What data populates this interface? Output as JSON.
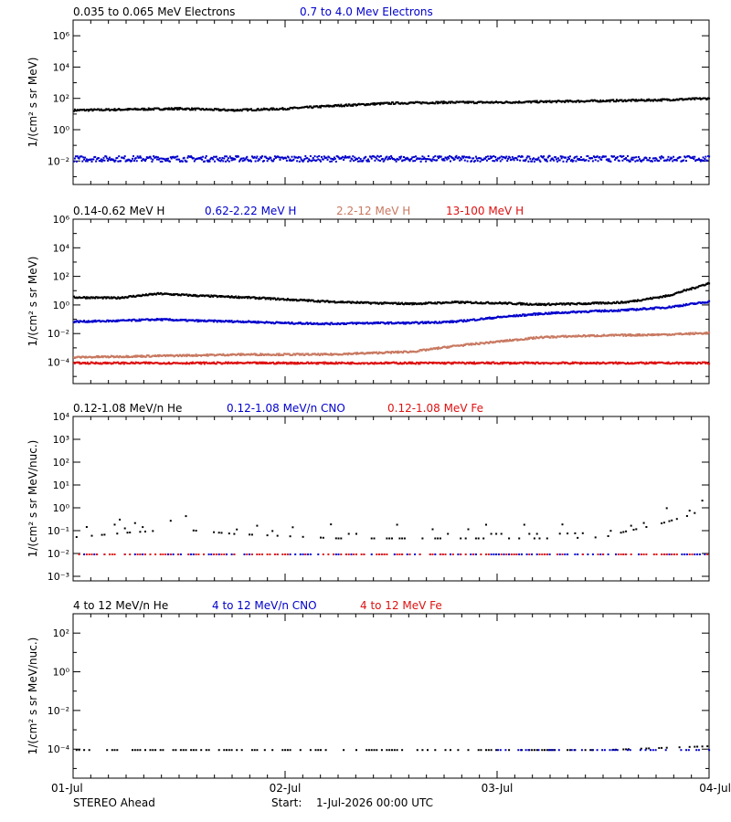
{
  "chart_data": [
    {
      "type": "scatter",
      "ylabel": "1/(cm² s sr MeV)",
      "y_log": true,
      "ylim_exp": [
        -3.5,
        7
      ],
      "ytick_exps": [
        -2,
        0,
        2,
        4,
        6
      ],
      "xlim": [
        0,
        3
      ],
      "series": [
        {
          "name": "0.035 to 0.065 MeV Electrons",
          "color": "#000000",
          "x": [
            0,
            0.25,
            0.5,
            0.75,
            1.0,
            1.25,
            1.5,
            1.75,
            2.0,
            2.25,
            2.5,
            2.75,
            3.0
          ],
          "y_exp": [
            1.3,
            1.35,
            1.4,
            1.3,
            1.4,
            1.6,
            1.75,
            1.8,
            1.8,
            1.85,
            1.9,
            1.95,
            2.05
          ]
        },
        {
          "name": "0.7 to 4.0 Mev Electrons",
          "color": "#0000cc",
          "x": [
            0,
            0.5,
            1.0,
            1.5,
            2.0,
            2.5,
            3.0
          ],
          "y_exp": [
            -1.8,
            -1.8,
            -1.8,
            -1.8,
            -1.8,
            -1.8,
            -1.8
          ]
        }
      ]
    },
    {
      "type": "scatter",
      "ylabel": "1/(cm² s sr MeV)",
      "y_log": true,
      "ylim_exp": [
        -5.5,
        6
      ],
      "ytick_exps": [
        -4,
        -2,
        0,
        2,
        4,
        6
      ],
      "xlim": [
        0,
        3
      ],
      "series": [
        {
          "name": "0.14-0.62 MeV H",
          "color": "#000000",
          "x": [
            0,
            0.2,
            0.4,
            0.6,
            0.8,
            1.0,
            1.2,
            1.4,
            1.6,
            1.8,
            2.0,
            2.2,
            2.4,
            2.6,
            2.8,
            3.0
          ],
          "y_exp": [
            0.6,
            0.55,
            0.85,
            0.7,
            0.6,
            0.45,
            0.3,
            0.2,
            0.15,
            0.25,
            0.2,
            0.1,
            0.15,
            0.25,
            0.7,
            1.6
          ]
        },
        {
          "name": "0.62-2.22 MeV H",
          "color": "#0000cc",
          "x": [
            0,
            0.2,
            0.4,
            0.6,
            0.8,
            1.0,
            1.2,
            1.4,
            1.6,
            1.8,
            2.0,
            2.2,
            2.4,
            2.6,
            2.8,
            3.0
          ],
          "y_exp": [
            -1.1,
            -1.05,
            -0.95,
            -1.05,
            -1.1,
            -1.2,
            -1.25,
            -1.2,
            -1.2,
            -1.1,
            -0.8,
            -0.55,
            -0.4,
            -0.3,
            -0.1,
            0.3
          ]
        },
        {
          "name": "2.2-12 MeV H",
          "color": "#c87860",
          "x": [
            0,
            0.4,
            0.8,
            1.2,
            1.4,
            1.6,
            1.8,
            2.0,
            2.2,
            2.4,
            2.6,
            2.8,
            3.0
          ],
          "y_exp": [
            -3.6,
            -3.5,
            -3.4,
            -3.4,
            -3.3,
            -3.2,
            -2.8,
            -2.5,
            -2.2,
            -2.1,
            -2.05,
            -2.0,
            -1.9
          ]
        },
        {
          "name": "13-100 MeV H",
          "color": "#dd1111",
          "x": [
            0,
            0.5,
            1.0,
            1.5,
            2.0,
            2.5,
            3.0
          ],
          "y_exp": [
            -4.0,
            -4.0,
            -4.0,
            -4.0,
            -4.0,
            -4.0,
            -4.0
          ]
        }
      ]
    },
    {
      "type": "scatter",
      "ylabel": "1/(cm² s sr MeV/nuc.)",
      "y_log": true,
      "ylim_exp": [
        -3.2,
        4
      ],
      "ytick_exps": [
        -3,
        -2,
        -1,
        0,
        1,
        2,
        3,
        4
      ],
      "xlim": [
        0,
        3
      ],
      "series": [
        {
          "name": "0.12-1.08 MeV/n He",
          "color": "#000000",
          "x": [
            0,
            0.25,
            0.5,
            0.75,
            1.0,
            1.25,
            1.5,
            1.75,
            2.0,
            2.25,
            2.5,
            2.6,
            2.75,
            2.9,
            3.0
          ],
          "y_exp": [
            -1.25,
            -1.05,
            -0.9,
            -1.1,
            -1.2,
            -1.3,
            -1.3,
            -1.3,
            -1.3,
            -1.3,
            -1.25,
            -1.0,
            -0.7,
            -0.3,
            0.1
          ]
        },
        {
          "name": "0.12-1.08 MeV/n CNO",
          "color": "#0000cc",
          "x": [
            0,
            0.5,
            1.0,
            1.5,
            2.0,
            2.5,
            3.0
          ],
          "y_exp": [
            -2.0,
            -2.0,
            -2.0,
            -2.0,
            -2.0,
            -2.0,
            -2.0
          ]
        },
        {
          "name": "0.12-1.08 MeV Fe",
          "color": "#dd1111",
          "x": [
            0,
            0.5,
            1.0,
            1.5,
            2.0,
            2.5,
            3.0
          ],
          "y_exp": [
            -2.0,
            -2.0,
            -2.0,
            -2.0,
            -2.0,
            -2.0,
            -2.0
          ]
        }
      ]
    },
    {
      "type": "scatter",
      "ylabel": "1/(cm² s sr MeV/nuc.)",
      "y_log": true,
      "ylim_exp": [
        -5.5,
        3
      ],
      "ytick_exps": [
        -4,
        -2,
        0,
        2
      ],
      "xlim": [
        0,
        3
      ],
      "series": [
        {
          "name": "4 to 12 MeV/n He",
          "color": "#000000",
          "x": [
            0,
            0.5,
            1.0,
            1.5,
            2.0,
            2.5,
            2.75,
            3.0
          ],
          "y_exp": [
            -4.0,
            -4.0,
            -4.0,
            -4.0,
            -4.0,
            -4.0,
            -3.9,
            -3.8
          ]
        },
        {
          "name": "4 to 12 MeV/n CNO",
          "color": "#0000cc",
          "x": [
            2.0,
            2.5,
            3.0
          ],
          "y_exp": [
            -4.0,
            -4.0,
            -4.0
          ]
        },
        {
          "name": "4 to 12 MeV Fe",
          "color": "#dd1111",
          "x": [],
          "y_exp": []
        }
      ]
    }
  ],
  "x_axis": {
    "tick_labels": [
      "01-Jul",
      "02-Jul",
      "03-Jul",
      "04-Jul"
    ]
  },
  "footer": {
    "spacecraft": "STEREO Ahead",
    "start_label": "Start:",
    "start_value": "1-Jul-2026 00:00 UTC"
  }
}
